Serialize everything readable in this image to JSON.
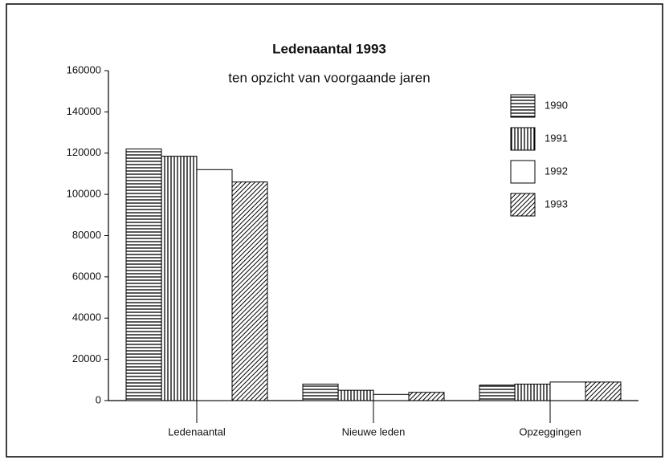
{
  "chart_data": {
    "type": "bar",
    "title": "Ledenaantal 1993",
    "subtitle": "ten opzicht van voorgaande jaren",
    "categories": [
      "Ledenaantal",
      "Nieuwe leden",
      "Opzeggingen"
    ],
    "series": [
      {
        "name": "1990",
        "color": "#000000",
        "pattern": "horizontal",
        "values": [
          122000,
          8000,
          7500
        ]
      },
      {
        "name": "1991",
        "color": "#000000",
        "pattern": "vertical",
        "values": [
          118500,
          5000,
          8000
        ]
      },
      {
        "name": "1992",
        "color": "#000000",
        "pattern": "none",
        "values": [
          112000,
          3000,
          9000
        ]
      },
      {
        "name": "1993",
        "color": "#000000",
        "pattern": "diagonal",
        "values": [
          106000,
          4000,
          9000
        ]
      }
    ],
    "ylim": [
      0,
      160000
    ],
    "yticks": [
      0,
      20000,
      40000,
      60000,
      80000,
      100000,
      120000,
      140000,
      160000
    ],
    "grid": false,
    "legend": "top-right"
  }
}
